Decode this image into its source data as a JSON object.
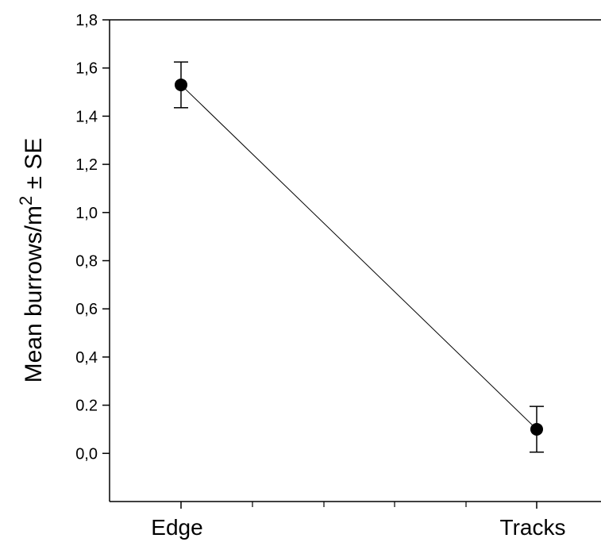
{
  "chart_data": {
    "type": "line",
    "categories": [
      "Edge",
      "Tracks"
    ],
    "series": [
      {
        "values": [
          1.53,
          0.1
        ],
        "errors": [
          0.095,
          0.095
        ]
      }
    ],
    "ylabel": {
      "text": "Mean burrows/m",
      "sup": "2",
      "suffix": " ± SE"
    },
    "ylim": [
      -0.2,
      1.8
    ],
    "yticks": [
      0.0,
      0.2,
      0.4,
      0.6,
      0.8,
      1.0,
      1.2,
      1.4,
      1.6,
      1.8
    ],
    "ytick_labels": [
      "0,0",
      "0.2",
      "0,4",
      "0,6",
      "0,8",
      "1,0",
      "1,2",
      "1,4",
      "1,6",
      "1,8"
    ],
    "grid": false,
    "legend": "none"
  }
}
